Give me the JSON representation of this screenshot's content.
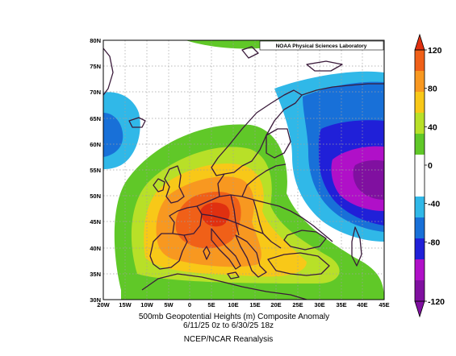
{
  "map": {
    "credit": "NOAA Physical Sciences Laboratory",
    "lon_labels": [
      "20W",
      "15W",
      "10W",
      "5W",
      "0",
      "5E",
      "10E",
      "15E",
      "20E",
      "25E",
      "30E",
      "35E",
      "40E",
      "45E"
    ],
    "lat_labels": [
      "30N",
      "35N",
      "40N",
      "45N",
      "50N",
      "55N",
      "60N",
      "65N",
      "70N",
      "75N",
      "80N"
    ],
    "projection": "cylindrical equidistant",
    "lon_range": [
      -20,
      45
    ],
    "lat_range": [
      30,
      80
    ]
  },
  "caption": {
    "line1": "500mb Geopotential Heights (m)    Composite Anomaly",
    "line2": "6/11/25 0z  to 6/30/25 18z",
    "line3": "NCEP/NCAR Reanalysis"
  },
  "colorbar": {
    "labels": [
      "120",
      "80",
      "40",
      "0",
      "-40",
      "-80",
      "-120"
    ],
    "bins": [
      {
        "from": 120,
        "color": "#e03010"
      },
      {
        "from": 100,
        "color": "#f06018"
      },
      {
        "from": 80,
        "color": "#f89820"
      },
      {
        "from": 60,
        "color": "#f8c818"
      },
      {
        "from": 40,
        "color": "#b8e028"
      },
      {
        "from": 20,
        "color": "#60c828"
      },
      {
        "from": 0,
        "color": "#ffffff"
      },
      {
        "from": -20,
        "color": "#ffffff"
      },
      {
        "from": -40,
        "color": "#30b8e8"
      },
      {
        "from": -60,
        "color": "#1870d8"
      },
      {
        "from": -80,
        "color": "#2020d8"
      },
      {
        "from": -100,
        "color": "#b010c8"
      },
      {
        "from": -120,
        "color": "#8010a0"
      }
    ]
  },
  "anomaly_features": [
    {
      "type": "positive",
      "center_lon": 7,
      "center_lat": 50,
      "peak": 100
    },
    {
      "type": "negative",
      "center_lon": 42,
      "center_lat": 53,
      "peak": -100
    },
    {
      "type": "negative",
      "center_lon": -18,
      "center_lat": 63,
      "peak": -60
    }
  ]
}
